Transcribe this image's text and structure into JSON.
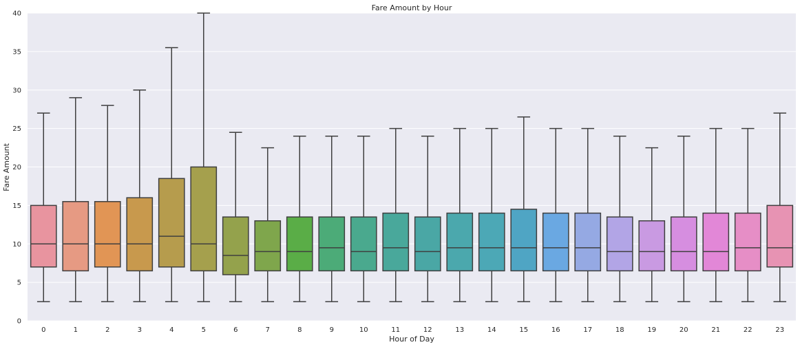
{
  "chart_data": {
    "type": "box",
    "title": "Fare Amount by Hour",
    "xlabel": "Hour of Day",
    "ylabel": "Fare Amount",
    "ylim": [
      0,
      40
    ],
    "yticks": [
      0,
      5,
      10,
      15,
      20,
      25,
      30,
      35,
      40
    ],
    "grid": true,
    "background": "#eaeaf2",
    "box_edge_color": "#3f3f3f",
    "categories": [
      "0",
      "1",
      "2",
      "3",
      "4",
      "5",
      "6",
      "7",
      "8",
      "9",
      "10",
      "11",
      "12",
      "13",
      "14",
      "15",
      "16",
      "17",
      "18",
      "19",
      "20",
      "21",
      "22",
      "23"
    ],
    "boxes": [
      {
        "hour": "0",
        "whislo": 2.5,
        "q1": 7.0,
        "med": 10.0,
        "q3": 15.0,
        "whishi": 27.0,
        "color": "#e8949f"
      },
      {
        "hour": "1",
        "whislo": 2.5,
        "q1": 6.5,
        "med": 10.0,
        "q3": 15.5,
        "whishi": 29.0,
        "color": "#e69a83"
      },
      {
        "hour": "2",
        "whislo": 2.5,
        "q1": 7.0,
        "med": 10.0,
        "q3": 15.5,
        "whishi": 28.0,
        "color": "#e19555"
      },
      {
        "hour": "3",
        "whislo": 2.5,
        "q1": 6.5,
        "med": 10.0,
        "q3": 16.0,
        "whishi": 30.0,
        "color": "#c8994d"
      },
      {
        "hour": "4",
        "whislo": 2.5,
        "q1": 7.0,
        "med": 11.0,
        "q3": 18.5,
        "whishi": 35.5,
        "color": "#b69c4d"
      },
      {
        "hour": "5",
        "whislo": 2.5,
        "q1": 6.5,
        "med": 10.0,
        "q3": 20.0,
        "whishi": 40.0,
        "color": "#a5a04d"
      },
      {
        "hour": "6",
        "whislo": 2.5,
        "q1": 6.0,
        "med": 8.5,
        "q3": 13.5,
        "whishi": 24.5,
        "color": "#94a24c"
      },
      {
        "hour": "7",
        "whislo": 2.5,
        "q1": 6.5,
        "med": 9.0,
        "q3": 13.0,
        "whishi": 22.5,
        "color": "#7fa64c"
      },
      {
        "hour": "8",
        "whislo": 2.5,
        "q1": 6.5,
        "med": 9.0,
        "q3": 13.5,
        "whishi": 24.0,
        "color": "#5aad47"
      },
      {
        "hour": "9",
        "whislo": 2.5,
        "q1": 6.5,
        "med": 9.5,
        "q3": 13.5,
        "whishi": 24.0,
        "color": "#4cab78"
      },
      {
        "hour": "10",
        "whislo": 2.5,
        "q1": 6.5,
        "med": 9.0,
        "q3": 13.5,
        "whishi": 24.0,
        "color": "#4aa98e"
      },
      {
        "hour": "11",
        "whislo": 2.5,
        "q1": 6.5,
        "med": 9.5,
        "q3": 14.0,
        "whishi": 25.0,
        "color": "#49a89b"
      },
      {
        "hour": "12",
        "whislo": 2.5,
        "q1": 6.5,
        "med": 9.0,
        "q3": 13.5,
        "whishi": 24.0,
        "color": "#4aa7a5"
      },
      {
        "hour": "13",
        "whislo": 2.5,
        "q1": 6.5,
        "med": 9.5,
        "q3": 14.0,
        "whishi": 25.0,
        "color": "#4ba8ad"
      },
      {
        "hour": "14",
        "whislo": 2.5,
        "q1": 6.5,
        "med": 9.5,
        "q3": 14.0,
        "whishi": 25.0,
        "color": "#4ca8b6"
      },
      {
        "hour": "15",
        "whislo": 2.5,
        "q1": 6.5,
        "med": 9.5,
        "q3": 14.5,
        "whishi": 26.5,
        "color": "#4fa5c4"
      },
      {
        "hour": "16",
        "whislo": 2.5,
        "q1": 6.5,
        "med": 9.5,
        "q3": 14.0,
        "whishi": 25.0,
        "color": "#6aa8e2"
      },
      {
        "hour": "17",
        "whislo": 2.5,
        "q1": 6.5,
        "med": 9.5,
        "q3": 14.0,
        "whishi": 25.0,
        "color": "#95a9e3"
      },
      {
        "hour": "18",
        "whislo": 2.5,
        "q1": 6.5,
        "med": 9.0,
        "q3": 13.5,
        "whishi": 24.0,
        "color": "#b2a5e6"
      },
      {
        "hour": "19",
        "whislo": 2.5,
        "q1": 6.5,
        "med": 9.0,
        "q3": 13.0,
        "whishi": 22.5,
        "color": "#c99ae2"
      },
      {
        "hour": "20",
        "whislo": 2.5,
        "q1": 6.5,
        "med": 9.0,
        "q3": 13.5,
        "whishi": 24.0,
        "color": "#d68ee0"
      },
      {
        "hour": "21",
        "whislo": 2.5,
        "q1": 6.5,
        "med": 9.0,
        "q3": 14.0,
        "whishi": 25.0,
        "color": "#e287d7"
      },
      {
        "hour": "22",
        "whislo": 2.5,
        "q1": 6.5,
        "med": 9.5,
        "q3": 14.0,
        "whishi": 25.0,
        "color": "#e68ec6"
      },
      {
        "hour": "23",
        "whislo": 2.5,
        "q1": 7.0,
        "med": 9.5,
        "q3": 15.0,
        "whishi": 27.0,
        "color": "#e793b3"
      }
    ]
  }
}
